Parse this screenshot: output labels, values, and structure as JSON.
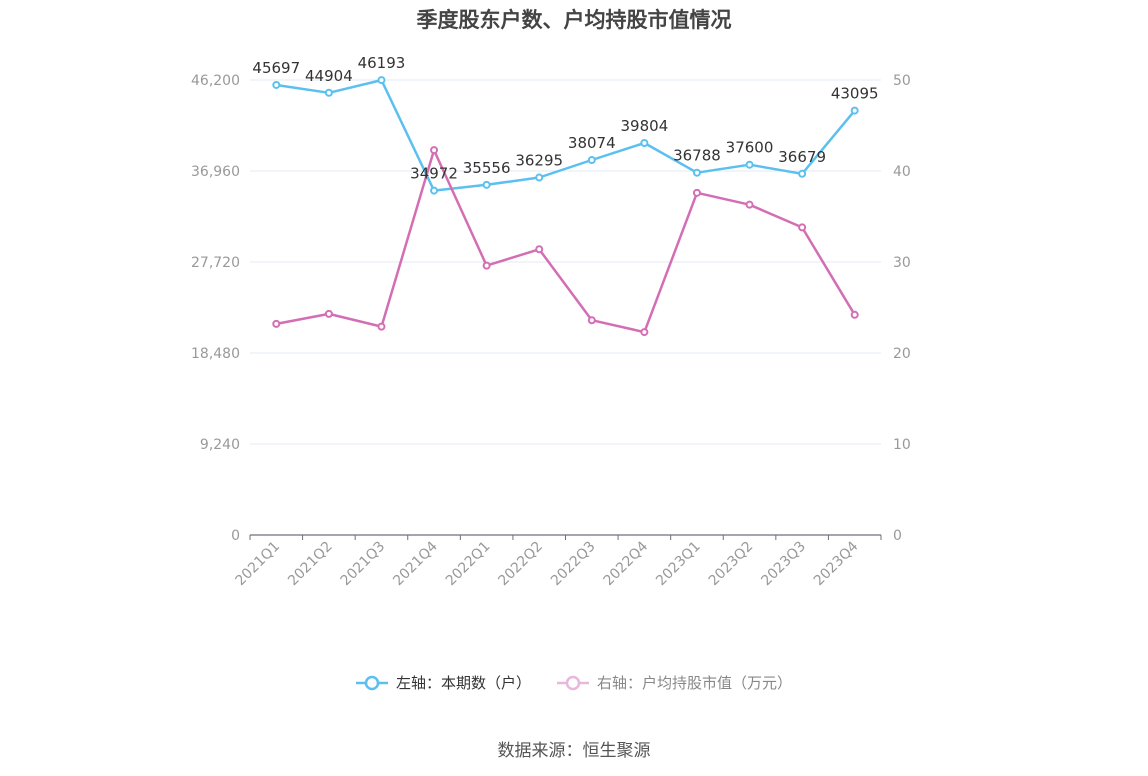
{
  "title": "季度股东户数、户均持股市值情况",
  "source": "数据来源：恒生聚源",
  "colors": {
    "left": "#5bc0f0",
    "right": "#d46eb4",
    "axis": "#999999",
    "grid": "#e3e8f2",
    "label": "#333333"
  },
  "chart_data": {
    "type": "line",
    "title": "季度股东户数、户均持股市值情况",
    "categories": [
      "2021Q1",
      "2021Q2",
      "2021Q3",
      "2021Q4",
      "2022Q1",
      "2022Q2",
      "2022Q3",
      "2022Q4",
      "2023Q1",
      "2023Q2",
      "2023Q3",
      "2023Q4"
    ],
    "left_axis": {
      "ticks": [
        "0",
        "9,240",
        "18,480",
        "27,720",
        "36,960",
        "46,200"
      ],
      "range": [
        0,
        46200
      ]
    },
    "right_axis": {
      "ticks": [
        "0",
        "10",
        "20",
        "30",
        "40",
        "50"
      ],
      "range": [
        0,
        50
      ]
    },
    "series": [
      {
        "name": "左轴：本期数（户）",
        "axis": "left",
        "values": [
          45697,
          44904,
          46193,
          34972,
          35556,
          36295,
          38074,
          39804,
          36788,
          37600,
          36679,
          43095
        ],
        "labels": [
          "45697",
          "44904",
          "46193",
          "34972",
          "35556",
          "36295",
          "38074",
          "39804",
          "36788",
          "37600",
          "36679",
          "43095"
        ]
      },
      {
        "name": "右轴：户均持股市值（万元）",
        "axis": "right",
        "values": [
          23.2,
          24.3,
          22.9,
          42.3,
          29.6,
          31.4,
          23.6,
          22.3,
          37.6,
          36.3,
          33.8,
          24.2
        ]
      }
    ],
    "grid": true,
    "legend": "bottom-center"
  }
}
